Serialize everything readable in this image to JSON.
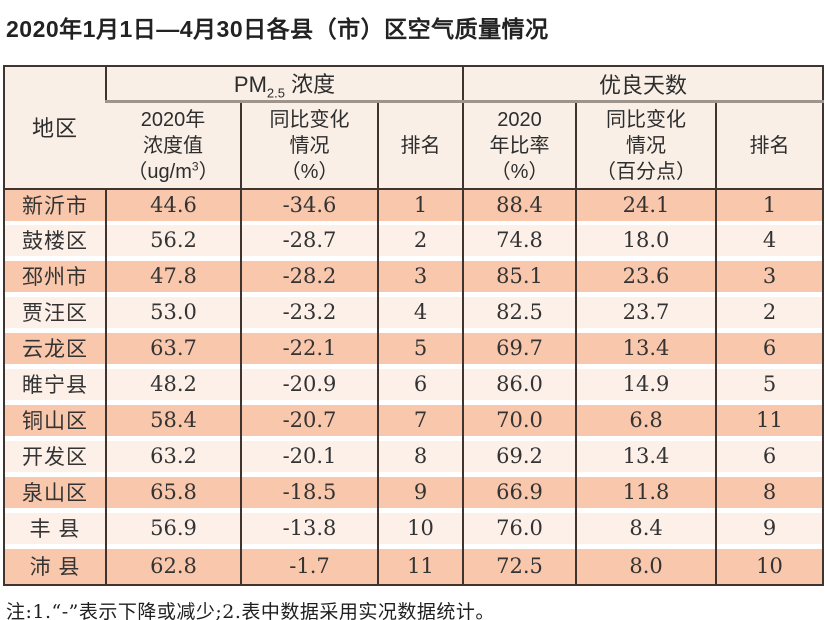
{
  "page": {
    "title": "2020年1月1日—4月30日各县（市）区空气质量情况",
    "footnote": "注:1.“-”表示下降或减少;2.表中数据采用实况数据统计。"
  },
  "colors": {
    "border_dark": "#3f3430",
    "border_gray": "#9d948e",
    "header_bg": "#f9efe6",
    "band_dark": "#f8c7ac",
    "band_light": "#fdf0e9",
    "text_main": "#333333"
  },
  "table": {
    "region_header": "地区",
    "pm_group": {
      "prefix": "PM",
      "sub": "2.5",
      "suffix": " 浓度"
    },
    "good_group_label": "优良天数",
    "sub": {
      "pm_value_l1": "2020年",
      "pm_value_l2": "浓度值",
      "pm_value_l3_pre": "（ug/m",
      "pm_value_l3_sup": "3",
      "pm_value_l3_post": "）",
      "pm_change_l1": "同比变化",
      "pm_change_l2": "情况",
      "pm_change_l3": "（%）",
      "pm_rank": "排名",
      "good_rate_l1": "2020",
      "good_rate_l2": "年比率",
      "good_rate_l3": "（%）",
      "good_change_l1": "同比变化",
      "good_change_l2": "情况",
      "good_change_l3": "（百分点）",
      "good_rank": "排名"
    },
    "rows": [
      {
        "region": "新沂市",
        "pm_value": "44.6",
        "pm_change": "-34.6",
        "pm_rank": "1",
        "good_rate": "88.4",
        "good_change": "24.1",
        "good_rank": "1"
      },
      {
        "region": "鼓楼区",
        "pm_value": "56.2",
        "pm_change": "-28.7",
        "pm_rank": "2",
        "good_rate": "74.8",
        "good_change": "18.0",
        "good_rank": "4"
      },
      {
        "region": "邳州市",
        "pm_value": "47.8",
        "pm_change": "-28.2",
        "pm_rank": "3",
        "good_rate": "85.1",
        "good_change": "23.6",
        "good_rank": "3"
      },
      {
        "region": "贾汪区",
        "pm_value": "53.0",
        "pm_change": "-23.2",
        "pm_rank": "4",
        "good_rate": "82.5",
        "good_change": "23.7",
        "good_rank": "2"
      },
      {
        "region": "云龙区",
        "pm_value": "63.7",
        "pm_change": "-22.1",
        "pm_rank": "5",
        "good_rate": "69.7",
        "good_change": "13.4",
        "good_rank": "6"
      },
      {
        "region": "睢宁县",
        "pm_value": "48.2",
        "pm_change": "-20.9",
        "pm_rank": "6",
        "good_rate": "86.0",
        "good_change": "14.9",
        "good_rank": "5"
      },
      {
        "region": "铜山区",
        "pm_value": "58.4",
        "pm_change": "-20.7",
        "pm_rank": "7",
        "good_rate": "70.0",
        "good_change": "6.8",
        "good_rank": "11"
      },
      {
        "region": "开发区",
        "pm_value": "63.2",
        "pm_change": "-20.1",
        "pm_rank": "8",
        "good_rate": "69.2",
        "good_change": "13.4",
        "good_rank": "6"
      },
      {
        "region": "泉山区",
        "pm_value": "65.8",
        "pm_change": "-18.5",
        "pm_rank": "9",
        "good_rate": "66.9",
        "good_change": "11.8",
        "good_rank": "8"
      },
      {
        "region": "丰 县",
        "pm_value": "56.9",
        "pm_change": "-13.8",
        "pm_rank": "10",
        "good_rate": "76.0",
        "good_change": "8.4",
        "good_rank": "9"
      },
      {
        "region": "沛 县",
        "pm_value": "62.8",
        "pm_change": "-1.7",
        "pm_rank": "11",
        "good_rate": "72.5",
        "good_change": "8.0",
        "good_rank": "10"
      }
    ]
  }
}
